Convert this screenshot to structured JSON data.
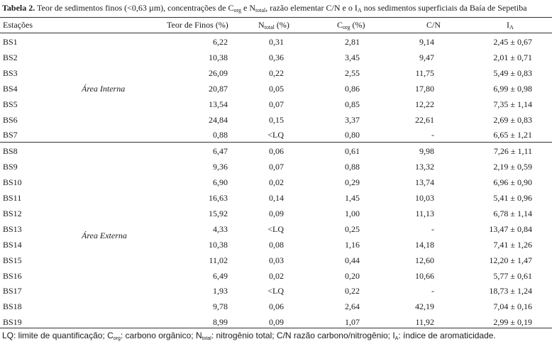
{
  "caption": {
    "label": "Tabela 2.",
    "text_1": " Teor de sedimentos finos (<0,63 µm), concentrações de C",
    "sub_1": "org",
    "text_2": " e N",
    "sub_2": "total",
    "text_3": ", razão elementar C/N e o I",
    "sub_3": "A",
    "text_4": " nos sedimentos superficiais da Baía de Sepetiba"
  },
  "headers": {
    "stations": "Estações",
    "fines": "Teor de Finos (%)",
    "ntotal_main": "N",
    "ntotal_sub": "total",
    "ntotal_unit": " (%)",
    "corg_main": "C",
    "corg_sub": "org",
    "corg_unit": " (%)",
    "cn": "C/N",
    "ia_main": "I",
    "ia_sub": "A"
  },
  "groups": {
    "internal": "Área Interna",
    "external": "Área Externa"
  },
  "rows": [
    {
      "station": "BS1",
      "fines": "6,22",
      "ntotal": "0,31",
      "corg": "2,81",
      "cn": "9,14",
      "ia": "2,45 ± 0,67"
    },
    {
      "station": "BS2",
      "fines": "10,38",
      "ntotal": "0,36",
      "corg": "3,45",
      "cn": "9,47",
      "ia": "2,01 ± 0,71"
    },
    {
      "station": "BS3",
      "fines": "26,09",
      "ntotal": "0,22",
      "corg": "2,55",
      "cn": "11,75",
      "ia": "5,49 ± 0,83"
    },
    {
      "station": "BS4",
      "fines": "20,87",
      "ntotal": "0,05",
      "corg": "0,86",
      "cn": "17,80",
      "ia": "6,99 ± 0,98"
    },
    {
      "station": "BS5",
      "fines": "13,54",
      "ntotal": "0,07",
      "corg": "0,85",
      "cn": "12,22",
      "ia": "7,35 ± 1,14"
    },
    {
      "station": "BS6",
      "fines": "24,84",
      "ntotal": "0,15",
      "corg": "3,37",
      "cn": "22,61",
      "ia": "2,69 ± 0,83"
    },
    {
      "station": "BS7",
      "fines": "0,88",
      "ntotal": "<LQ",
      "corg": "0,80",
      "cn": "-",
      "ia": "6,65 ± 1,21"
    },
    {
      "station": "BS8",
      "fines": "6,47",
      "ntotal": "0,06",
      "corg": "0,61",
      "cn": "9,98",
      "ia": "7,26 ± 1,11"
    },
    {
      "station": "BS9",
      "fines": "9,36",
      "ntotal": "0,07",
      "corg": "0,88",
      "cn": "13,32",
      "ia": "2,19 ± 0,59"
    },
    {
      "station": "BS10",
      "fines": "6,90",
      "ntotal": "0,02",
      "corg": "0,29",
      "cn": "13,74",
      "ia": "6,96 ± 0,90"
    },
    {
      "station": "BS11",
      "fines": "16,63",
      "ntotal": "0,14",
      "corg": "1,45",
      "cn": "10,03",
      "ia": "5,41 ± 0,96"
    },
    {
      "station": "BS12",
      "fines": "15,92",
      "ntotal": "0,09",
      "corg": "1,00",
      "cn": "11,13",
      "ia": "6,78 ± 1,14"
    },
    {
      "station": "BS13",
      "fines": "4,33",
      "ntotal": "<LQ",
      "corg": "0,25",
      "cn": "-",
      "ia": "13,47 ± 0,84"
    },
    {
      "station": "BS14",
      "fines": "10,38",
      "ntotal": "0,08",
      "corg": "1,16",
      "cn": "14,18",
      "ia": "7,41 ± 1,26"
    },
    {
      "station": "BS15",
      "fines": "11,02",
      "ntotal": "0,03",
      "corg": "0,44",
      "cn": "12,60",
      "ia": "12,20 ± 1,47"
    },
    {
      "station": "BS16",
      "fines": "6,49",
      "ntotal": "0,02",
      "corg": "0,20",
      "cn": "10,66",
      "ia": "5,77 ± 0,61"
    },
    {
      "station": "BS17",
      "fines": "1,93",
      "ntotal": "<LQ",
      "corg": "0,22",
      "cn": "-",
      "ia": "18,73 ± 1,24"
    },
    {
      "station": "BS18",
      "fines": "9,78",
      "ntotal": "0,06",
      "corg": "2,64",
      "cn": "42,19",
      "ia": "7,04 ± 0,16"
    },
    {
      "station": "BS19",
      "fines": "8,99",
      "ntotal": "0,09",
      "corg": "1,07",
      "cn": "11,92",
      "ia": "2,99 ± 0,19"
    }
  ],
  "footnote": {
    "t1": "LQ: limite de quantificação; C",
    "s1": "org",
    "t2": ": carbono orgânico; N",
    "s2": "total",
    "t3": ": nitrogênio total; C/N razão carbono/nitrogênio; I",
    "s3": "A",
    "t4": ": índice de aromaticidade."
  }
}
